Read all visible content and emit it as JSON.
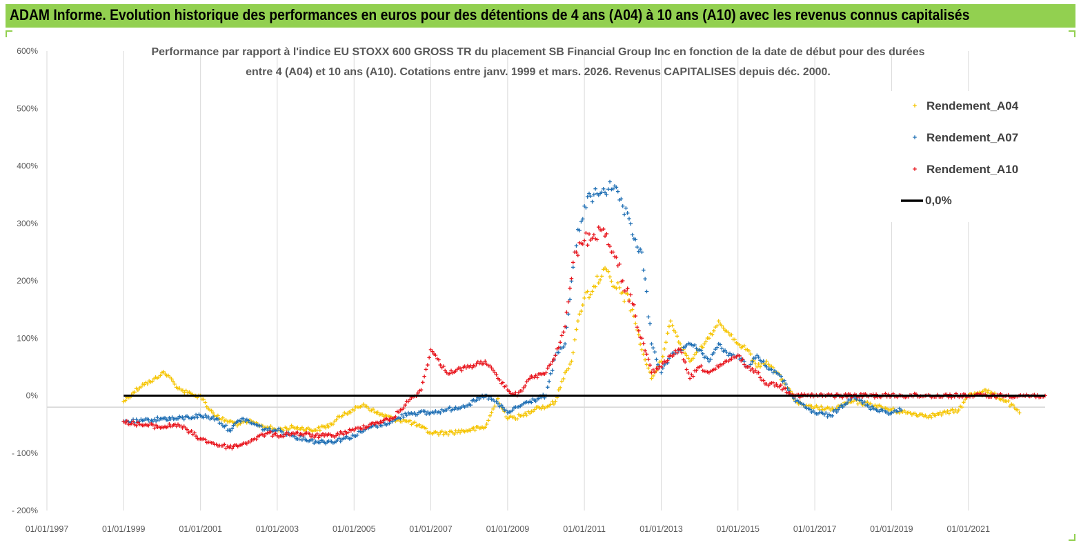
{
  "header": {
    "title": "ADAM Informe. Evolution historique des performances en euros pour des détentions de 4 ans (A04) à 10 ans (A10) avec les revenus connus capitalisés"
  },
  "colors": {
    "header_bg": "#92d050",
    "A04": "#f5c400",
    "A07": "#1f6fb4",
    "A10": "#e8141c",
    "zero_line": "#000000"
  },
  "chart_data": {
    "type": "scatter",
    "title_line1": "Performance par rapport à l'indice EU STOXX 600 GROSS TR  du placement SB Financial Group Inc en fonction de la date de début pour des durées",
    "title_line2": "entre 4 (A04) et 10 ans (A10). Cotations entre janv. 1999 et mars. 2026. Revenus CAPITALISES depuis déc. 2000.",
    "x_ticks": [
      "01/01/1997",
      "01/01/1999",
      "01/01/2001",
      "01/01/2003",
      "01/01/2005",
      "01/01/2007",
      "01/01/2009",
      "01/01/2011",
      "01/01/2013",
      "01/01/2015",
      "01/01/2017",
      "01/01/2019",
      "01/01/2021"
    ],
    "y_ticks": [
      "600%",
      "500%",
      "400%",
      "300%",
      "200%",
      "100%",
      "0%",
      "- 100%",
      "- 200%"
    ],
    "xlim": [
      "1997-01-01",
      "2023-01-01"
    ],
    "ylim": [
      -200,
      600
    ],
    "legend": {
      "position": "top-right",
      "items": [
        {
          "label": "Rendement_A04",
          "series": "A04"
        },
        {
          "label": "Rendement_A07",
          "series": "A07"
        },
        {
          "label": "Rendement_A10",
          "series": "A10"
        },
        {
          "label": "0,0%",
          "series": "zero"
        }
      ]
    },
    "series": [
      {
        "name": "Rendement_A04",
        "key": "A04",
        "x": [
          "1999-01-01",
          "1999-04-01",
          "1999-07-01",
          "1999-10-01",
          "2000-01-01",
          "2000-03-01",
          "2000-05-01",
          "2000-07-01",
          "2000-09-01",
          "2000-11-01",
          "2001-01-01",
          "2001-04-01",
          "2001-07-01",
          "2001-10-01",
          "2002-01-01",
          "2002-04-01",
          "2002-07-01",
          "2002-10-01",
          "2003-01-01",
          "2003-06-01",
          "2004-01-01",
          "2004-06-01",
          "2004-10-01",
          "2005-01-01",
          "2005-04-01",
          "2005-08-01",
          "2006-01-01",
          "2006-06-01",
          "2006-10-01",
          "2007-01-01",
          "2007-06-01",
          "2008-01-01",
          "2008-06-01",
          "2008-10-01",
          "2009-01-01",
          "2009-06-01",
          "2009-10-01",
          "2010-01-01",
          "2010-04-01",
          "2010-07-01",
          "2010-09-01",
          "2010-11-01",
          "2011-01-01",
          "2011-04-01",
          "2011-07-01",
          "2011-10-01",
          "2012-01-01",
          "2012-04-01",
          "2012-07-01",
          "2012-10-01",
          "2013-01-01",
          "2013-04-01",
          "2013-07-01",
          "2013-10-01",
          "2014-01-01",
          "2014-04-01",
          "2014-07-01",
          "2014-10-01",
          "2015-01-01",
          "2015-04-01",
          "2015-07-01",
          "2015-10-01",
          "2016-01-01",
          "2016-04-01",
          "2016-07-01",
          "2016-10-01",
          "2017-01-01",
          "2017-06-01",
          "2018-01-01",
          "2018-06-01",
          "2019-01-01",
          "2019-06-01",
          "2020-01-01",
          "2020-06-01",
          "2020-10-01",
          "2021-01-01",
          "2021-06-01",
          "2022-01-01",
          "2022-05-01"
        ],
        "y": [
          -10,
          5,
          20,
          25,
          40,
          35,
          20,
          10,
          5,
          0,
          0,
          -25,
          -40,
          -45,
          -50,
          -45,
          -50,
          -55,
          -60,
          -55,
          -60,
          -50,
          -30,
          -25,
          -15,
          -30,
          -40,
          -45,
          -55,
          -65,
          -65,
          -60,
          -55,
          -5,
          -40,
          -35,
          -20,
          -20,
          -10,
          40,
          60,
          130,
          170,
          190,
          220,
          190,
          180,
          150,
          80,
          30,
          60,
          130,
          90,
          60,
          80,
          100,
          130,
          110,
          90,
          80,
          50,
          60,
          40,
          20,
          -10,
          -20,
          -20,
          -25,
          -10,
          -15,
          -25,
          -30,
          -35,
          -30,
          -25,
          0,
          10,
          -10,
          -30
        ]
      },
      {
        "name": "Rendement_A07",
        "key": "A07",
        "x": [
          "1999-01-01",
          "1999-06-01",
          "2000-01-01",
          "2000-06-01",
          "2001-01-01",
          "2001-06-01",
          "2001-10-01",
          "2002-02-01",
          "2002-06-01",
          "2002-10-01",
          "2003-01-01",
          "2003-06-01",
          "2004-01-01",
          "2004-06-01",
          "2005-01-01",
          "2005-06-01",
          "2006-01-01",
          "2006-06-01",
          "2007-01-01",
          "2007-06-01",
          "2008-01-01",
          "2008-06-01",
          "2008-09-01",
          "2009-01-01",
          "2009-04-01",
          "2009-08-01",
          "2010-01-01",
          "2010-04-01",
          "2010-07-01",
          "2010-10-01",
          "2011-01-01",
          "2011-04-01",
          "2011-07-01",
          "2011-10-01",
          "2012-01-01",
          "2012-04-01",
          "2012-07-01",
          "2012-10-01",
          "2013-01-01",
          "2013-04-01",
          "2013-07-01",
          "2013-10-01",
          "2014-01-01",
          "2014-04-01",
          "2014-07-01",
          "2014-10-01",
          "2015-01-01",
          "2015-04-01",
          "2015-07-01",
          "2015-10-01",
          "2016-01-01",
          "2016-04-01",
          "2016-07-01",
          "2016-10-01",
          "2017-01-01",
          "2017-06-01",
          "2018-01-01",
          "2018-06-01",
          "2019-01-01",
          "2019-04-01"
        ],
        "y": [
          -45,
          -45,
          -40,
          -40,
          -35,
          -40,
          -60,
          -40,
          -50,
          -60,
          -60,
          -70,
          -80,
          -80,
          -70,
          -55,
          -45,
          -30,
          -30,
          -25,
          -15,
          0,
          -10,
          -30,
          -20,
          -10,
          0,
          70,
          90,
          250,
          330,
          350,
          360,
          360,
          330,
          280,
          250,
          90,
          40,
          70,
          80,
          90,
          80,
          60,
          90,
          70,
          70,
          50,
          70,
          50,
          40,
          20,
          -10,
          -20,
          -30,
          -35,
          0,
          -20,
          -30,
          -25
        ]
      },
      {
        "name": "Rendement_A10",
        "key": "A10",
        "x": [
          "1999-01-01",
          "1999-06-01",
          "2000-01-01",
          "2000-06-01",
          "2001-01-01",
          "2001-06-01",
          "2001-10-01",
          "2002-02-01",
          "2002-06-01",
          "2002-10-01",
          "2003-01-01",
          "2003-06-01",
          "2004-01-01",
          "2004-06-01",
          "2005-01-01",
          "2005-06-01",
          "2006-01-01",
          "2006-06-01",
          "2006-10-01",
          "2007-01-01",
          "2007-06-01",
          "2008-01-01",
          "2008-06-01",
          "2008-10-01",
          "2009-01-01",
          "2009-04-01",
          "2009-08-01",
          "2010-01-01",
          "2010-04-01",
          "2010-07-01",
          "2010-10-01",
          "2011-01-01",
          "2011-04-01",
          "2011-07-01",
          "2011-10-01",
          "2012-01-01",
          "2012-04-01",
          "2012-07-01",
          "2012-10-01",
          "2013-01-01",
          "2013-04-01",
          "2013-07-01",
          "2013-10-01",
          "2014-01-01",
          "2014-04-01",
          "2014-07-01",
          "2014-10-01",
          "2015-01-01",
          "2015-04-01",
          "2015-07-01",
          "2015-10-01",
          "2016-01-01",
          "2016-07-01",
          "2017-01-01",
          "2018-01-01",
          "2019-01-01",
          "2020-01-01",
          "2021-01-01",
          "2022-01-01",
          "2023-01-01"
        ],
        "y": [
          -45,
          -50,
          -55,
          -50,
          -75,
          -85,
          -90,
          -85,
          -75,
          -65,
          -70,
          -65,
          -70,
          -70,
          -60,
          -50,
          -40,
          -10,
          10,
          80,
          40,
          50,
          60,
          30,
          10,
          0,
          30,
          40,
          70,
          120,
          250,
          270,
          280,
          290,
          250,
          200,
          160,
          100,
          40,
          50,
          70,
          80,
          30,
          50,
          40,
          50,
          60,
          70,
          50,
          40,
          20,
          20,
          0,
          0,
          0,
          0,
          0,
          0,
          0,
          0
        ]
      }
    ]
  }
}
